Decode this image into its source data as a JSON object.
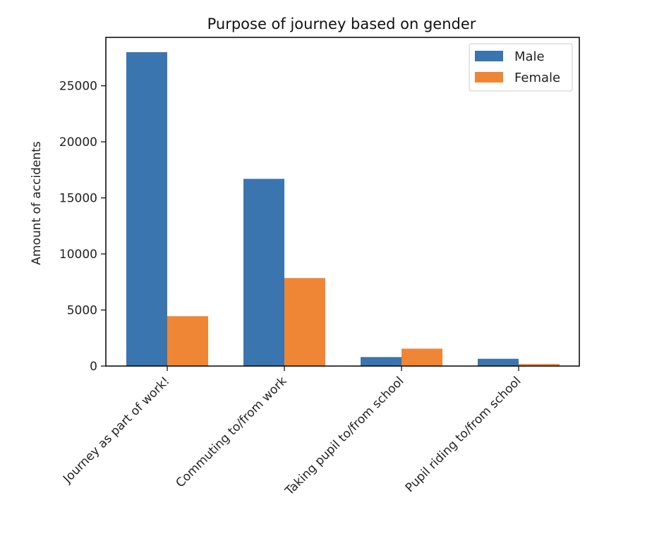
{
  "chart_data": {
    "type": "bar",
    "title": "Purpose of journey based on gender",
    "xlabel": "",
    "ylabel": "Amount of accidents",
    "categories": [
      "Journey as part of work!",
      "Commuting to/from work",
      "Taking pupil to/from school",
      "Pupil riding to/from school"
    ],
    "series": [
      {
        "name": "Male",
        "color": "#3a75b0",
        "values": [
          28000,
          16700,
          800,
          650
        ]
      },
      {
        "name": "Female",
        "color": "#ef8636",
        "values": [
          4450,
          7850,
          1550,
          180
        ]
      }
    ],
    "ylim": [
      0,
      28000
    ],
    "yticks": [
      0,
      5000,
      10000,
      15000,
      20000,
      25000
    ],
    "ytick_labels": [
      "0",
      "5000",
      "10000",
      "15000",
      "20000",
      "25000"
    ],
    "grid": false,
    "legend": "top-right"
  }
}
